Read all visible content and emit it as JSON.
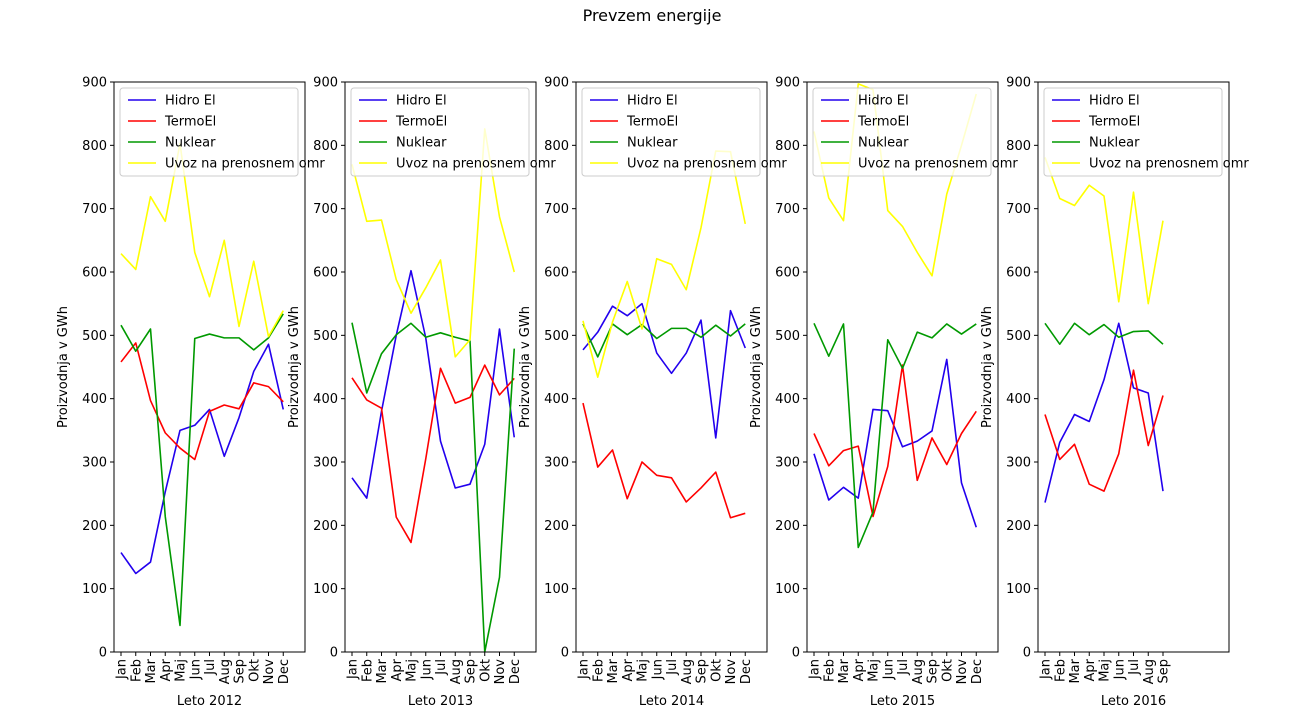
{
  "suptitle": "Prevzem energije",
  "chart_data": [
    {
      "type": "line",
      "xlabel": "Leto 2012",
      "ylabel": "Proizvodnja v GWh",
      "categories": [
        "Jan",
        "Feb",
        "Mar",
        "Apr",
        "Maj",
        "Jun",
        "Jul",
        "Aug",
        "Sep",
        "Okt",
        "Nov",
        "Dec"
      ],
      "ylim": [
        0,
        900
      ],
      "yticks": [
        0,
        100,
        200,
        300,
        400,
        500,
        600,
        700,
        800,
        900
      ],
      "legend": "top-left",
      "series": [
        {
          "name": "Hidro El",
          "color": "#2200ee",
          "values": [
            157,
            124,
            142,
            253,
            350,
            358,
            383,
            309,
            370,
            443,
            486,
            383
          ]
        },
        {
          "name": "TermoEl",
          "color": "#ff0000",
          "values": [
            458,
            488,
            397,
            346,
            322,
            304,
            380,
            390,
            384,
            425,
            419,
            395
          ]
        },
        {
          "name": "Nuklear",
          "color": "#009900",
          "values": [
            516,
            475,
            510,
            214,
            42,
            495,
            502,
            496,
            496,
            477,
            496,
            534
          ]
        },
        {
          "name": "Uvoz na prenosnem omr",
          "color": "#ffff00",
          "values": [
            629,
            604,
            719,
            680,
            803,
            631,
            561,
            650,
            514,
            617,
            498,
            539
          ]
        }
      ]
    },
    {
      "type": "line",
      "xlabel": "Leto 2013",
      "ylabel": "Proizvodnja v GWh",
      "categories": [
        "Jan",
        "Feb",
        "Mar",
        "Apr",
        "Maj",
        "Jun",
        "Jul",
        "Aug",
        "Sep",
        "Okt",
        "Nov",
        "Dec"
      ],
      "ylim": [
        0,
        900
      ],
      "yticks": [
        0,
        100,
        200,
        300,
        400,
        500,
        600,
        700,
        800,
        900
      ],
      "legend": "top-left",
      "series": [
        {
          "name": "Hidro El",
          "color": "#2200ee",
          "values": [
            275,
            243,
            380,
            500,
            602,
            496,
            333,
            259,
            265,
            328,
            510,
            339
          ]
        },
        {
          "name": "TermoEl",
          "color": "#ff0000",
          "values": [
            433,
            398,
            385,
            213,
            173,
            305,
            448,
            393,
            402,
            453,
            406,
            432
          ]
        },
        {
          "name": "Nuklear",
          "color": "#009900",
          "values": [
            520,
            409,
            471,
            501,
            519,
            497,
            504,
            497,
            491,
            0,
            118,
            479
          ]
        },
        {
          "name": "Uvoz na prenosnem omr",
          "color": "#ffff00",
          "values": [
            770,
            680,
            682,
            588,
            535,
            575,
            619,
            466,
            493,
            826,
            687,
            600
          ]
        }
      ]
    },
    {
      "type": "line",
      "xlabel": "Leto 2014",
      "ylabel": "Proizvodnja v GWh",
      "categories": [
        "Jan",
        "Feb",
        "Mar",
        "Apr",
        "Maj",
        "Jun",
        "Jul",
        "Aug",
        "Sep",
        "Okt",
        "Nov",
        "Dec"
      ],
      "ylim": [
        0,
        900
      ],
      "yticks": [
        0,
        100,
        200,
        300,
        400,
        500,
        600,
        700,
        800,
        900
      ],
      "legend": "top-left",
      "series": [
        {
          "name": "Hidro El",
          "color": "#2200ee",
          "values": [
            477,
            505,
            546,
            531,
            550,
            472,
            440,
            472,
            524,
            338,
            539,
            480
          ]
        },
        {
          "name": "TermoEl",
          "color": "#ff0000",
          "values": [
            393,
            292,
            319,
            242,
            300,
            279,
            275,
            237,
            259,
            284,
            212,
            219
          ]
        },
        {
          "name": "Nuklear",
          "color": "#009900",
          "values": [
            518,
            466,
            518,
            501,
            517,
            495,
            511,
            511,
            497,
            516,
            499,
            518
          ]
        },
        {
          "name": "Uvoz na prenosnem omr",
          "color": "#ffff00",
          "values": [
            523,
            434,
            521,
            585,
            510,
            621,
            612,
            572,
            670,
            791,
            790,
            676
          ]
        }
      ]
    },
    {
      "type": "line",
      "xlabel": "Leto 2015",
      "ylabel": "Proizvodnja v GWh",
      "categories": [
        "Jan",
        "Feb",
        "Mar",
        "Apr",
        "Maj",
        "Jun",
        "Jul",
        "Aug",
        "Sep",
        "Okt",
        "Nov",
        "Dec"
      ],
      "ylim": [
        0,
        900
      ],
      "yticks": [
        0,
        100,
        200,
        300,
        400,
        500,
        600,
        700,
        800,
        900
      ],
      "legend": "top-left",
      "series": [
        {
          "name": "Hidro El",
          "color": "#2200ee",
          "values": [
            313,
            240,
            260,
            243,
            383,
            381,
            324,
            333,
            349,
            462,
            267,
            197
          ]
        },
        {
          "name": "TermoEl",
          "color": "#ff0000",
          "values": [
            345,
            294,
            318,
            325,
            214,
            293,
            453,
            271,
            338,
            296,
            345,
            380
          ]
        },
        {
          "name": "Nuklear",
          "color": "#009900",
          "values": [
            519,
            467,
            518,
            165,
            221,
            493,
            448,
            505,
            496,
            518,
            502,
            518
          ]
        },
        {
          "name": "Uvoz na prenosnem omr",
          "color": "#ffff00",
          "values": [
            822,
            717,
            681,
            897,
            888,
            697,
            672,
            631,
            594,
            723,
            800,
            881
          ]
        }
      ]
    },
    {
      "type": "line",
      "xlabel": "Leto 2016",
      "ylabel": "Proizvodnja v GWh",
      "categories": [
        "Jan",
        "Feb",
        "Mar",
        "Apr",
        "Maj",
        "Jun",
        "Jul",
        "Aug",
        "Sep"
      ],
      "ylim": [
        0,
        900
      ],
      "yticks": [
        0,
        100,
        200,
        300,
        400,
        500,
        600,
        700,
        800,
        900
      ],
      "legend": "top-left",
      "series": [
        {
          "name": "Hidro El",
          "color": "#2200ee",
          "values": [
            236,
            331,
            375,
            364,
            430,
            519,
            417,
            409,
            254
          ]
        },
        {
          "name": "TermoEl",
          "color": "#ff0000",
          "values": [
            375,
            304,
            328,
            265,
            254,
            313,
            445,
            326,
            405
          ]
        },
        {
          "name": "Nuklear",
          "color": "#009900",
          "values": [
            519,
            486,
            519,
            501,
            517,
            497,
            506,
            507,
            486
          ]
        },
        {
          "name": "Uvoz na prenosnem omr",
          "color": "#ffff00",
          "values": [
            781,
            716,
            705,
            737,
            720,
            553,
            726,
            550,
            681
          ]
        }
      ]
    }
  ]
}
